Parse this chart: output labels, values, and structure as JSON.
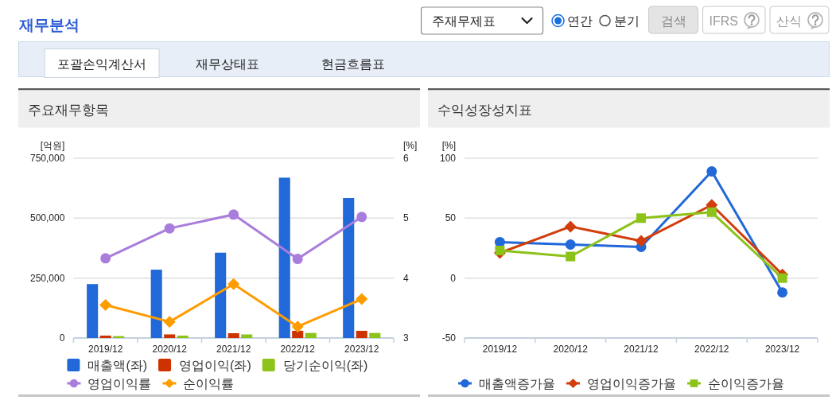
{
  "chart_data": [
    {
      "type": "other",
      "title": "재무분석",
      "annotations": [
        "주재무제표",
        "연간",
        "분기",
        "검색",
        "IFRS",
        "산식",
        "포괄손익계산서",
        "재무상태표",
        "현금흐름표"
      ]
    },
    {
      "type": "bar",
      "title": "주요재무항목",
      "ylabel": "[억원]",
      "y2label": "[%]",
      "categories": [
        "2019/12",
        "2020/12",
        "2021/12",
        "2022/12",
        "2023/12"
      ],
      "series": [
        {
          "name": "매출액(좌)",
          "color": "#2168d8",
          "values": [
            225000,
            285000,
            356000,
            669000,
            584000
          ]
        },
        {
          "name": "영업이익(좌)",
          "color": "#cc3300",
          "values": [
            10000,
            15000,
            20000,
            30000,
            30000
          ]
        },
        {
          "name": "당기순이익(좌)",
          "color": "#8ec31a",
          "values": [
            8000,
            10000,
            15000,
            21000,
            21000
          ]
        },
        {
          "name": "영업이익률",
          "type": "line",
          "axis": "y2",
          "color": "#a97ddc",
          "marker": "circle",
          "values": [
            4.33,
            4.83,
            5.06,
            4.32,
            5.02
          ]
        },
        {
          "name": "순이익률",
          "type": "line",
          "axis": "y2",
          "color": "#ff9c00",
          "marker": "diamond",
          "values": [
            3.55,
            3.27,
            3.9,
            3.19,
            3.65
          ]
        }
      ],
      "ylim": [
        0,
        750000
      ],
      "yticks": [
        0,
        {
          "value": 250000,
          "label": "250,000"
        },
        {
          "value": 500000,
          "label": "500,000"
        },
        {
          "value": 750000,
          "label": "750,000"
        }
      ],
      "y2lim": [
        3,
        6
      ],
      "y2ticks": [
        3,
        4,
        5,
        6
      ],
      "grid": "y",
      "legend": "bottom"
    },
    {
      "type": "line",
      "title": "수익성장성지표",
      "ylabel": "[%]",
      "categories": [
        "2019/12",
        "2020/12",
        "2021/12",
        "2022/12",
        "2023/12"
      ],
      "series": [
        {
          "name": "매출액증가율",
          "color": "#2168d8",
          "marker": "circle",
          "values": [
            30,
            28,
            26,
            89,
            -12
          ]
        },
        {
          "name": "영업이익증가율",
          "color": "#d23d0b",
          "marker": "diamond",
          "values": [
            21,
            43,
            31,
            61,
            3
          ]
        },
        {
          "name": "순이익증가율",
          "color": "#8dc21a",
          "marker": "square",
          "values": [
            23,
            18,
            50,
            55,
            0
          ]
        }
      ],
      "ylim": [
        -50,
        100
      ],
      "yticks": [
        -50,
        0,
        50,
        100
      ],
      "grid": "y",
      "legend": "bottom"
    }
  ]
}
